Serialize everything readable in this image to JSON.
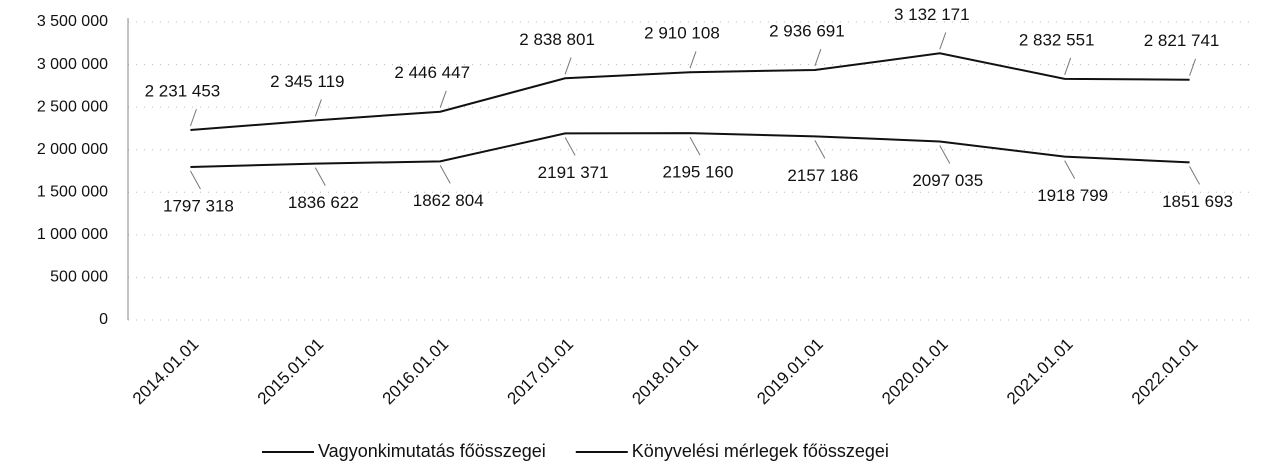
{
  "chart_data": {
    "type": "line",
    "categories": [
      "2014.01.01",
      "2015.01.01",
      "2016.01.01",
      "2017.01.01",
      "2018.01.01",
      "2019.01.01",
      "2020.01.01",
      "2021.01.01",
      "2022.01.01"
    ],
    "series": [
      {
        "name": "Vagyonkimutatás főösszegei",
        "color": "#111111",
        "values": [
          2231453,
          2345119,
          2446447,
          2838801,
          2910108,
          2936691,
          3132171,
          2832551,
          2821741
        ],
        "value_labels": [
          "2 231 453",
          "2 345 119",
          "2 446 447",
          "2 838 801",
          "2 910 108",
          "2 936 691",
          "3 132 171",
          "2 832 551",
          "2 821 741"
        ]
      },
      {
        "name": "Könyvelési mérlegek főösszegei",
        "color": "#111111",
        "values": [
          1797318,
          1836622,
          1862804,
          2191371,
          2195160,
          2157186,
          2097035,
          1918799,
          1851693
        ],
        "value_labels": [
          "1797 318",
          "1836 622",
          "1862 804",
          "2191 371",
          "2195 160",
          "2157 186",
          "2097 035",
          "1918 799",
          "1851 693"
        ]
      }
    ],
    "ylim": [
      0,
      3500000
    ],
    "yticks": [
      0,
      {
        "value": 500000,
        "label": "500 000"
      },
      {
        "value": 1000000,
        "label": "1 000 000"
      },
      {
        "value": 1500000,
        "label": "1 500 000"
      },
      {
        "value": 2000000,
        "label": "2 000 000"
      },
      {
        "value": 2500000,
        "label": "2 500 000"
      },
      {
        "value": 3000000,
        "label": "3 000 000"
      },
      {
        "value": 3500000,
        "label": "3 500 000"
      }
    ],
    "grid": true,
    "legend": "bottom"
  }
}
